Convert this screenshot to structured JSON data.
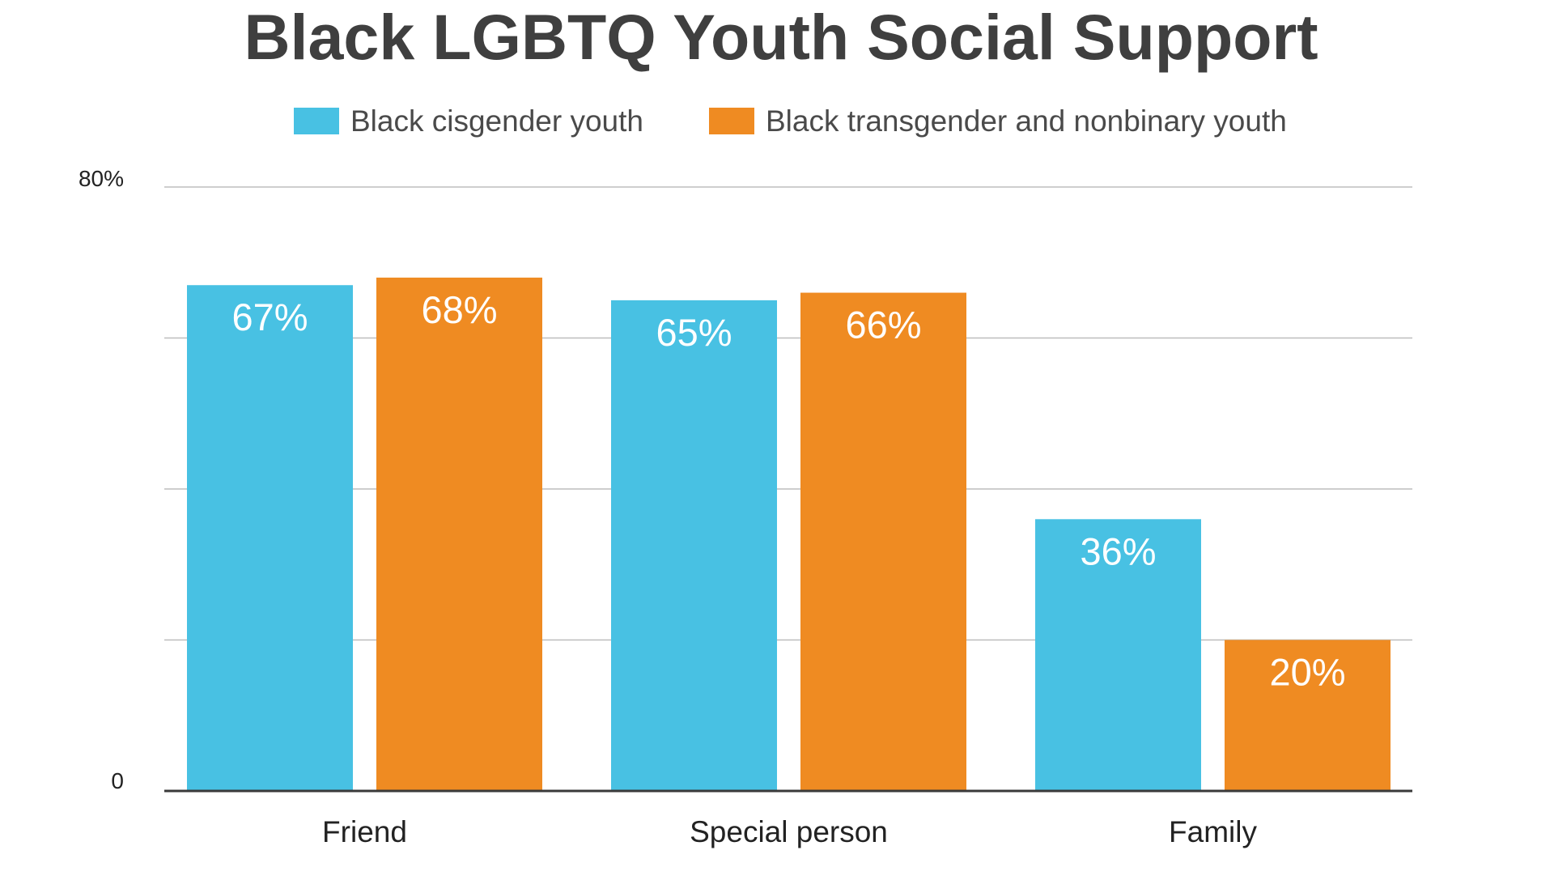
{
  "chart_data": {
    "type": "bar",
    "title": "Black LGBTQ Youth Social Support",
    "categories": [
      "Friend",
      "Special person",
      "Family"
    ],
    "series": [
      {
        "name": "Black cisgender youth",
        "color": "#48c1e3",
        "values": [
          67,
          65,
          36
        ],
        "labels": [
          "67%",
          "65%",
          "36%"
        ]
      },
      {
        "name": "Black transgender and nonbinary youth",
        "color": "#ef8b22",
        "values": [
          68,
          66,
          20
        ],
        "labels": [
          "68%",
          "66%",
          "20%"
        ]
      }
    ],
    "ylim": [
      0,
      80
    ],
    "yticks": [
      {
        "value": 0,
        "label": "0"
      },
      {
        "value": 20,
        "label": ""
      },
      {
        "value": 40,
        "label": ""
      },
      {
        "value": 60,
        "label": ""
      },
      {
        "value": 80,
        "label": "80%"
      }
    ],
    "grid": true,
    "legend_position": "top",
    "xlabel": "",
    "ylabel": ""
  }
}
